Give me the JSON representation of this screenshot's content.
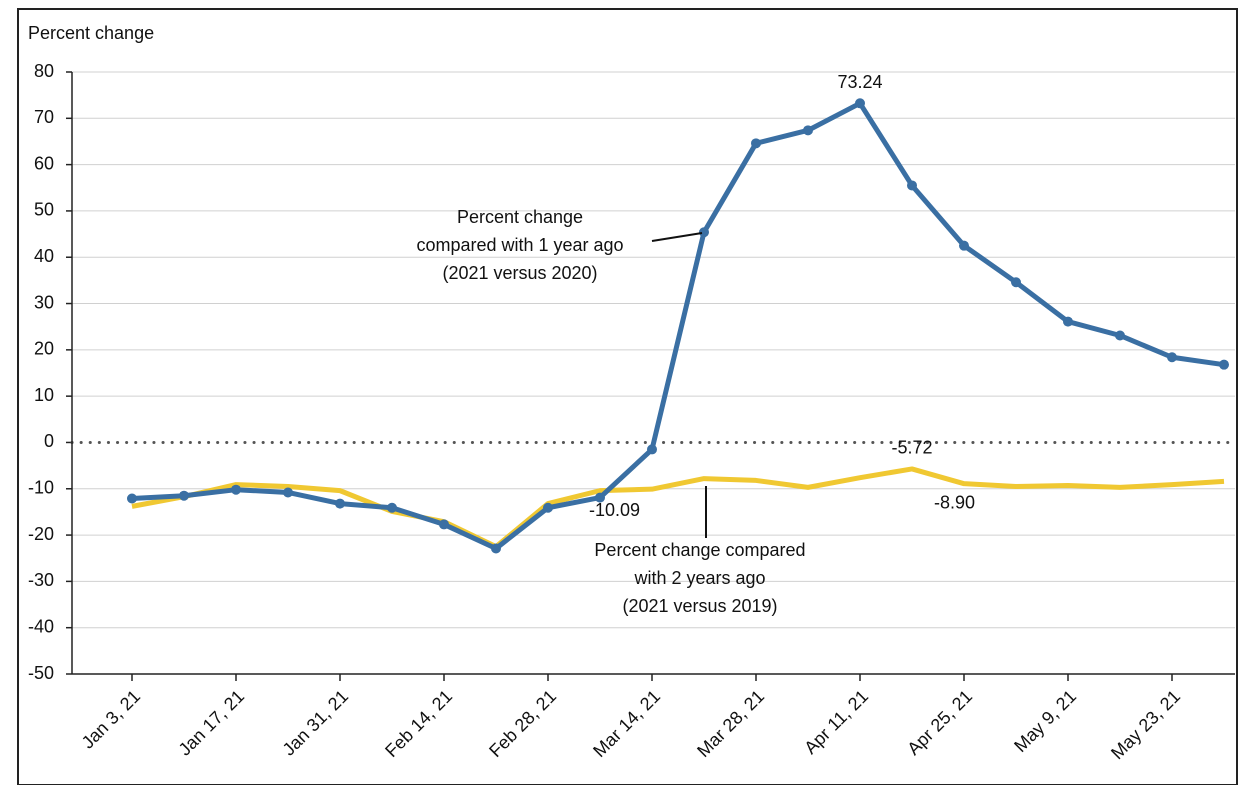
{
  "chart_data": {
    "type": "line",
    "y_label": "Percent change",
    "categories": [
      "Jan 3, 21",
      null,
      "Jan 17, 21",
      null,
      "Jan 31, 21",
      null,
      "Feb 14, 21",
      null,
      "Feb 28, 21",
      null,
      "Mar 14, 21",
      null,
      "Mar 28, 21",
      null,
      "Apr 11, 21",
      null,
      "Apr 25, 21",
      null,
      "May 9, 21",
      null,
      "May 23, 21",
      null
    ],
    "series": [
      {
        "color": "#3a6fa3",
        "values": [
          -12.1,
          -11.5,
          -10.2,
          -10.8,
          -13.2,
          -14.1,
          -17.7,
          -22.9,
          -14.1,
          -11.9,
          -1.5,
          45.4,
          64.6,
          67.4,
          73.24,
          55.5,
          42.5,
          34.6,
          26.1,
          23.1,
          18.4,
          16.8
        ],
        "value_labels": [
          null,
          null,
          null,
          null,
          null,
          null,
          null,
          null,
          null,
          null,
          null,
          null,
          null,
          null,
          "73.24",
          null,
          null,
          null,
          null,
          null,
          null,
          null
        ],
        "markers": true
      },
      {
        "color": "#f0c832",
        "values": [
          -13.8,
          -11.7,
          -9.1,
          -9.5,
          -10.4,
          -14.9,
          -17.1,
          -22.5,
          -13.2,
          -10.4,
          -10.09,
          -7.8,
          -8.2,
          -9.7,
          -7.6,
          -5.72,
          -8.9,
          -9.5,
          -9.3,
          -9.7,
          -9.1,
          -8.4
        ],
        "value_labels": [
          null,
          null,
          null,
          null,
          null,
          null,
          null,
          null,
          null,
          null,
          "-10.09",
          null,
          null,
          null,
          null,
          "-5.72",
          "-8.90",
          null,
          null,
          null,
          null,
          null
        ],
        "markers": false
      }
    ],
    "annotations": [
      [
        "Percent change",
        "compared with 1 year ago",
        "(2021 versus 2020)"
      ],
      [
        "Percent change compared",
        "with 2 years ago",
        "(2021 versus 2019)"
      ]
    ],
    "ylim": [
      -50,
      80
    ],
    "yticks": [
      -50,
      -40,
      -30,
      -20,
      -10,
      0,
      10,
      20,
      30,
      40,
      50,
      60,
      70,
      80
    ],
    "grid": true,
    "zero_line": "dotted"
  }
}
